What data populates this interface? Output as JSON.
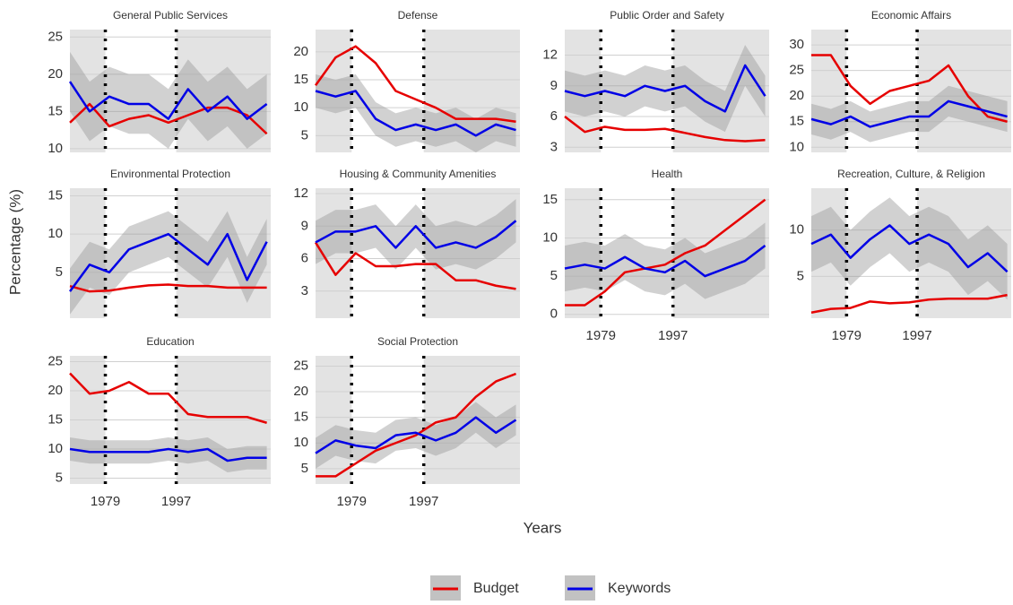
{
  "chart_data": {
    "type": "line",
    "x_label": "Years",
    "y_label": "Percentage (%)",
    "x": [
      1970,
      1975,
      1980,
      1985,
      1990,
      1995,
      2000,
      2005,
      2010,
      2015,
      2020
    ],
    "xlim": [
      1970,
      2021
    ],
    "xticks": [
      1979,
      1997
    ],
    "vlines": [
      1979,
      1997
    ],
    "shaded_periods": [
      [
        1970,
        1979
      ],
      [
        1997,
        2021
      ]
    ],
    "legend": [
      {
        "name": "Budget",
        "color": "#e60000"
      },
      {
        "name": "Keywords",
        "color": "#0000e6"
      }
    ],
    "panels": [
      {
        "title": "General Public Services",
        "ylim": [
          9.5,
          26
        ],
        "yticks": [
          10,
          15,
          20,
          25
        ],
        "series": [
          {
            "values": [
              13.5,
              16,
              13,
              14,
              14.5,
              13.5,
              14.5,
              15.5,
              15.5,
              14.5,
              12
            ]
          },
          {
            "values": [
              19,
              15,
              17,
              16,
              16,
              14,
              18,
              15,
              17,
              14,
              16
            ],
            "lower": [
              15,
              11,
              13,
              12,
              12,
              10,
              14,
              11,
              13,
              10,
              12
            ],
            "upper": [
              23,
              19,
              21,
              20,
              20,
              18,
              22,
              19,
              21,
              18,
              20
            ]
          }
        ]
      },
      {
        "title": "Defense",
        "ylim": [
          2,
          24
        ],
        "yticks": [
          5,
          10,
          15,
          20
        ],
        "series": [
          {
            "values": [
              14,
              19,
              21,
              18,
              13,
              11.5,
              10,
              8,
              8,
              8,
              7.5
            ]
          },
          {
            "values": [
              13,
              12,
              13,
              8,
              6,
              7,
              6,
              7,
              5,
              7,
              6
            ],
            "lower": [
              10,
              9,
              10,
              5,
              3,
              4,
              3,
              4,
              2,
              4,
              3
            ],
            "upper": [
              16,
              15,
              16,
              11,
              9,
              10,
              9,
              10,
              8,
              10,
              9
            ]
          }
        ]
      },
      {
        "title": "Public Order and Safety",
        "ylim": [
          2.5,
          14.5
        ],
        "yticks": [
          3,
          6,
          9,
          12
        ],
        "series": [
          {
            "values": [
              6,
              4.5,
              5,
              4.7,
              4.7,
              4.8,
              4.4,
              4,
              3.7,
              3.6,
              3.7
            ]
          },
          {
            "values": [
              8.5,
              8,
              8.5,
              8,
              9,
              8.5,
              9,
              7.5,
              6.5,
              11,
              8
            ],
            "lower": [
              6.5,
              6,
              6.5,
              6,
              7,
              6.5,
              7,
              5.5,
              4.5,
              9,
              6
            ],
            "upper": [
              10.5,
              10,
              10.5,
              10,
              11,
              10.5,
              11,
              9.5,
              8.5,
              13,
              10
            ]
          }
        ]
      },
      {
        "title": "Economic Affairs",
        "ylim": [
          9,
          33
        ],
        "yticks": [
          10,
          15,
          20,
          25,
          30
        ],
        "series": [
          {
            "values": [
              28,
              28,
              22,
              18.5,
              21,
              22,
              23,
              26,
              20,
              16,
              15
            ]
          },
          {
            "values": [
              15.5,
              14.5,
              16,
              14,
              15,
              16,
              16,
              19,
              18,
              17,
              16
            ],
            "lower": [
              12.5,
              11.5,
              13,
              11,
              12,
              13,
              13,
              16,
              15,
              14,
              13
            ],
            "upper": [
              18.5,
              17.5,
              19,
              17,
              18,
              19,
              19,
              22,
              21,
              20,
              19
            ]
          }
        ]
      },
      {
        "title": "Environmental Protection",
        "ylim": [
          -1,
          16
        ],
        "yticks": [
          5,
          10,
          15
        ],
        "series": [
          {
            "values": [
              3.2,
              2.5,
              2.6,
              3,
              3.3,
              3.4,
              3.2,
              3.2,
              3,
              3,
              3
            ]
          },
          {
            "values": [
              2.5,
              6,
              5,
              8,
              9,
              10,
              8,
              6,
              10,
              4,
              9
            ],
            "lower": [
              -0.5,
              3,
              2,
              5,
              6,
              7,
              5,
              3,
              7,
              1,
              6
            ],
            "upper": [
              5.5,
              9,
              8,
              11,
              12,
              13,
              11,
              9,
              13,
              7,
              12
            ]
          }
        ]
      },
      {
        "title": "Housing & Community Amenities",
        "ylim": [
          0.5,
          12.5
        ],
        "yticks": [
          3,
          6,
          9,
          12
        ],
        "series": [
          {
            "values": [
              7.5,
              4.5,
              6.5,
              5.3,
              5.3,
              5.5,
              5.5,
              4,
              4,
              3.5,
              3.2
            ]
          },
          {
            "values": [
              7.5,
              8.5,
              8.5,
              9,
              7,
              9,
              7,
              7.5,
              7,
              8,
              9.5
            ],
            "lower": [
              5.5,
              6.5,
              6.5,
              7,
              5,
              7,
              5,
              5.5,
              5,
              6,
              7.5
            ],
            "upper": [
              9.5,
              10.5,
              10.5,
              11,
              9,
              11,
              9,
              9.5,
              9,
              10,
              11.5
            ]
          }
        ]
      },
      {
        "title": "Health",
        "ylim": [
          -0.5,
          16.5
        ],
        "yticks": [
          0,
          5,
          10,
          15
        ],
        "series": [
          {
            "values": [
              1.2,
              1.2,
              3,
              5.5,
              6,
              6.5,
              8,
              9,
              11,
              13,
              15
            ]
          },
          {
            "values": [
              6,
              6.5,
              6,
              7.5,
              6,
              5.5,
              7,
              5,
              6,
              7,
              9
            ],
            "lower": [
              3,
              3.5,
              3,
              4.5,
              3,
              2.5,
              4,
              2,
              3,
              4,
              6
            ],
            "upper": [
              9,
              9.5,
              9,
              10.5,
              9,
              8.5,
              10,
              8,
              9,
              10,
              12
            ]
          }
        ]
      },
      {
        "title": "Recreation, Culture, & Religion",
        "ylim": [
          0.5,
          14.5
        ],
        "yticks": [
          5,
          10
        ],
        "series": [
          {
            "values": [
              1.1,
              1.5,
              1.6,
              2.3,
              2.1,
              2.2,
              2.5,
              2.6,
              2.6,
              2.6,
              3
            ]
          },
          {
            "values": [
              8.5,
              9.5,
              7,
              9,
              10.5,
              8.5,
              9.5,
              8.5,
              6,
              7.5,
              5.5
            ],
            "lower": [
              5.5,
              6.5,
              4,
              6,
              7.5,
              5.5,
              6.5,
              5.5,
              3,
              4.5,
              2.5
            ],
            "upper": [
              11.5,
              12.5,
              10,
              12,
              13.5,
              11.5,
              12.5,
              11.5,
              9,
              10.5,
              8.5
            ]
          }
        ]
      },
      {
        "title": "Education",
        "ylim": [
          4,
          26
        ],
        "yticks": [
          5,
          10,
          15,
          20,
          25
        ],
        "series": [
          {
            "values": [
              23,
              19.5,
              20,
              21.5,
              19.5,
              19.5,
              16,
              15.5,
              15.5,
              15.5,
              14.5
            ]
          },
          {
            "values": [
              10,
              9.5,
              9.5,
              9.5,
              9.5,
              10,
              9.5,
              10,
              8,
              8.5,
              8.5
            ],
            "lower": [
              8,
              7.5,
              7.5,
              7.5,
              7.5,
              8,
              7.5,
              8,
              6,
              6.5,
              6.5
            ],
            "upper": [
              12,
              11.5,
              11.5,
              11.5,
              11.5,
              12,
              11.5,
              12,
              10,
              10.5,
              10.5
            ]
          }
        ]
      },
      {
        "title": "Social Protection",
        "ylim": [
          2,
          27
        ],
        "yticks": [
          5,
          10,
          15,
          20,
          25
        ],
        "series": [
          {
            "values": [
              3.5,
              3.5,
              6,
              8.5,
              10,
              11.5,
              14,
              15,
              19,
              22,
              23.5
            ]
          },
          {
            "values": [
              8,
              10.5,
              9.5,
              9,
              11.5,
              12,
              10.5,
              12,
              15,
              12,
              14.5
            ],
            "lower": [
              5,
              7.5,
              6.5,
              6,
              8.5,
              9,
              7.5,
              9,
              12,
              9,
              11.5
            ],
            "upper": [
              11,
              13.5,
              12.5,
              12,
              14.5,
              15,
              13.5,
              15,
              18,
              15,
              17.5
            ]
          }
        ]
      }
    ]
  }
}
